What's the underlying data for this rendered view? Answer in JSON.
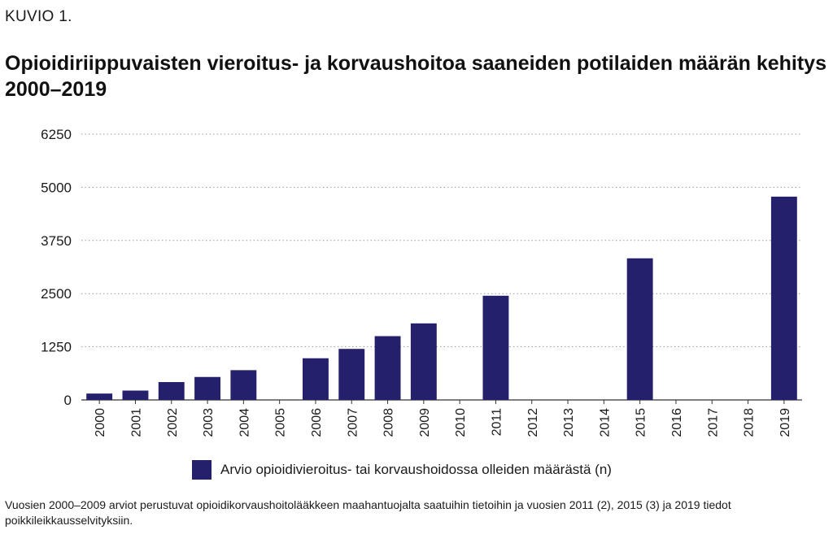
{
  "figure_label": "KUVIO 1.",
  "chart_data": {
    "type": "bar",
    "title": "Opioidiriippuvaisten vieroitus- ja korvaushoitoa saaneiden potilaiden määrän kehitys 2000–2019",
    "categories": [
      "2000",
      "2001",
      "2002",
      "2003",
      "2004",
      "2005",
      "2006",
      "2007",
      "2008",
      "2009",
      "2010",
      "2011",
      "2012",
      "2013",
      "2014",
      "2015",
      "2016",
      "2017",
      "2018",
      "2019"
    ],
    "series": [
      {
        "name": "Arvio opioidivieroitus- tai korvaushoidossa olleiden määrästä (n)",
        "values": [
          150,
          220,
          420,
          540,
          700,
          null,
          980,
          1200,
          1500,
          1800,
          null,
          2450,
          null,
          null,
          null,
          3330,
          null,
          null,
          null,
          4780
        ]
      }
    ],
    "ylim": [
      0,
      6250
    ],
    "yticks": [
      "0",
      "1250",
      "2500",
      "3750",
      "5000",
      "6250"
    ],
    "ytick_values": [
      0,
      1250,
      2500,
      3750,
      5000,
      6250
    ],
    "grid": "horizontal-dotted",
    "legend_position": "bottom",
    "bar_color": "#25206b"
  },
  "footnote": "Vuosien 2000–2009 arviot perustuvat opioidikorvaushoitolääkkeen maahantuojalta saatuihin tietoihin ja vuosien 2011 (2), 2015 (3) ja 2019 tiedot poikkileikkausselvityksiin."
}
